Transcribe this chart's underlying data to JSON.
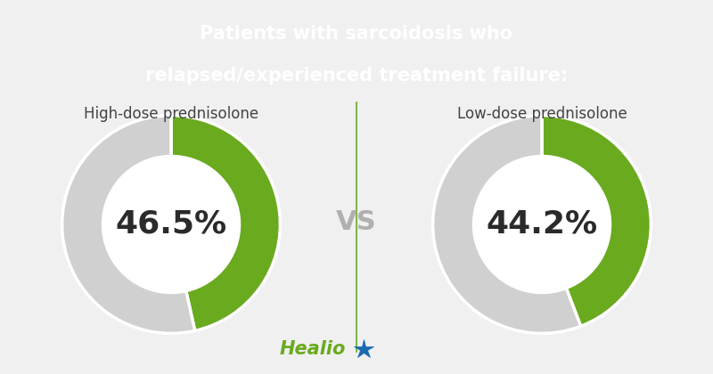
{
  "title_line1": "Patients with sarcoidosis who",
  "title_line2": "relapsed/experienced treatment failure:",
  "title_bg_color": "#6aaa1e",
  "title_text_color": "#ffffff",
  "bg_color": "#f0f0f0",
  "label1": "High-dose prednisolone",
  "label2": "Low-dose prednisolone",
  "value1": 46.5,
  "value2": 44.2,
  "donut_green": "#6aaa1e",
  "donut_gray": "#d0d0d0",
  "vs_color": "#b0b0b0",
  "label_color": "#444444",
  "value_text_color": "#2a2a2a",
  "divider_color": "#6aaa1e",
  "healio_color": "#6aaa1e",
  "healio_star_color": "#1a6ab0",
  "title_fontsize": 15,
  "label_fontsize": 12,
  "value_fontsize": 26,
  "vs_fontsize": 22,
  "healio_fontsize": 15
}
